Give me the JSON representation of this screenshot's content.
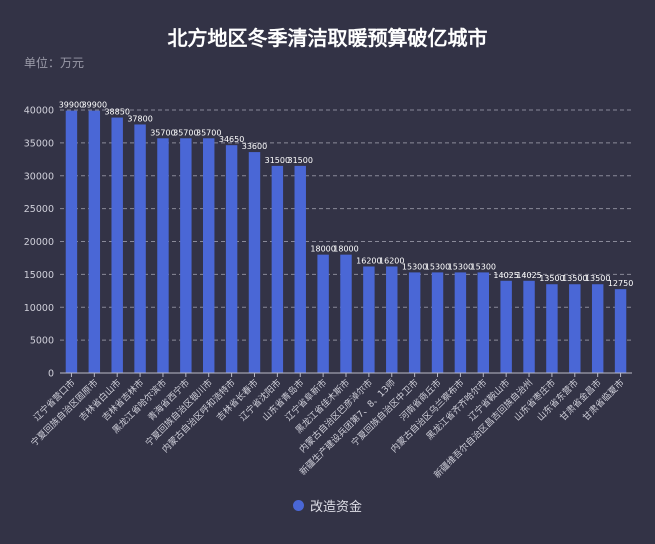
{
  "title": "北方地区冬季清洁取暖预算破亿城市",
  "unit_label": "单位：万元",
  "colors": {
    "bar": "#4a67d6",
    "background": "#333346",
    "axis_text": "#d0d0da",
    "grid": "#8a8a99"
  },
  "chart_data": {
    "type": "bar",
    "title": "北方地区冬季清洁取暖预算破亿城市",
    "categories": [
      "辽宁省营口市",
      "宁夏回族自治区固原市",
      "吉林省白山市",
      "吉林省吉林市",
      "黑龙江省哈尔滨市",
      "青海省西宁市",
      "宁夏回族自治区银川市",
      "内蒙古自治区呼和浩特市",
      "吉林省长春市",
      "辽宁省沈阳市",
      "山东省青岛市",
      "辽宁省阜新市",
      "黑龙江省佳木斯市",
      "内蒙古自治区巴彦淖尔市",
      "新疆生产建设兵团第7、8、13师",
      "宁夏回族自治区中卫市",
      "河南省商丘市",
      "内蒙古自治区乌兰察布市",
      "黑龙江省齐齐哈尔市",
      "辽宁省鞍山市",
      "新疆维吾尔自治区昌吉回族自治州",
      "山东省枣庄市",
      "山东省东营市",
      "甘肃省金昌市",
      "甘肃省临夏市"
    ],
    "series": [
      {
        "name": "改造资金",
        "values": [
          39900,
          39900,
          38850,
          37800,
          35700,
          35700,
          35700,
          34650,
          33600,
          31500,
          31500,
          18000,
          18000,
          16200,
          16200,
          15300,
          15300,
          15300,
          15300,
          14025,
          14025,
          13500,
          13500,
          13500,
          12750
        ]
      }
    ],
    "data_labels": [
      "39900",
      "39900",
      "38850",
      "37800",
      "35700",
      "35700",
      "35700",
      "34650",
      "33600",
      "31500",
      "31500",
      "18000",
      "18000",
      "16200",
      "16200",
      "15300",
      "15300",
      "15300",
      "15300",
      "14025",
      "14025",
      "13500",
      "13500",
      "13500",
      "12750"
    ],
    "yticks": [
      "0",
      "5000",
      "10000",
      "15000",
      "20000",
      "25000",
      "30000",
      "35000",
      "40000"
    ],
    "ylim": [
      0,
      40000
    ],
    "grid": true,
    "legend_position": "bottom-center"
  }
}
